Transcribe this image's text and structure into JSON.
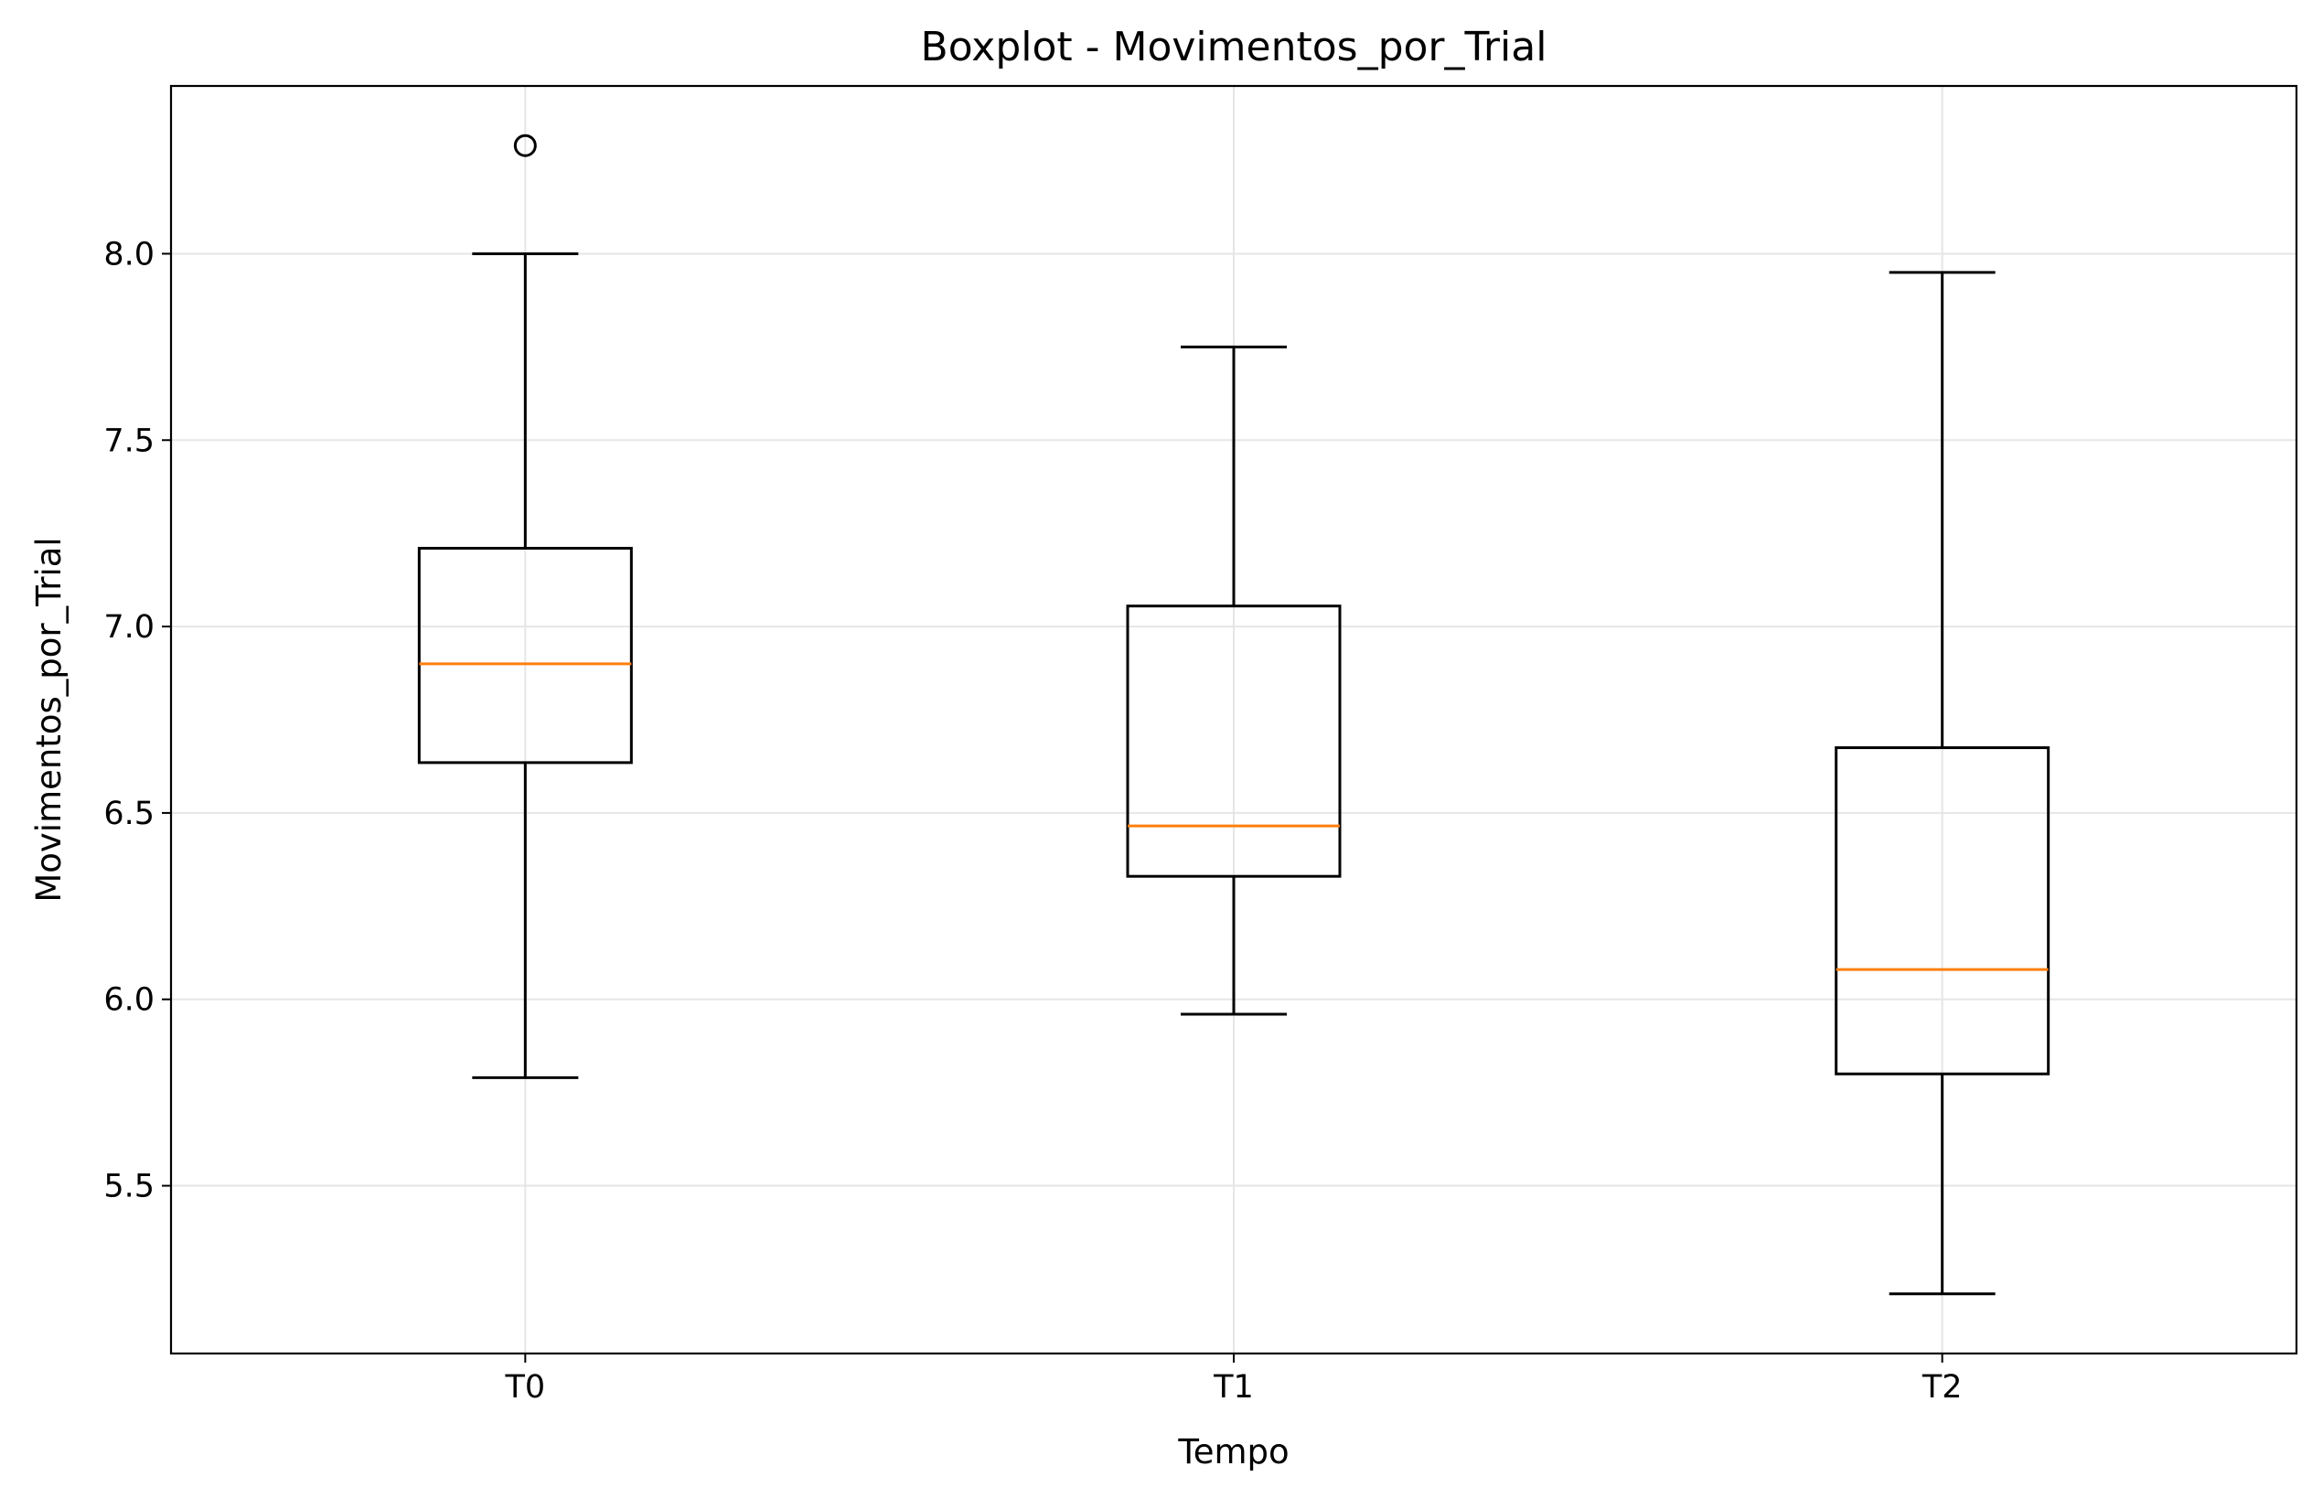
{
  "chart_data": {
    "type": "boxplot",
    "title": "Boxplot - Movimentos_por_Trial",
    "xlabel": "Tempo",
    "ylabel": "Movimentos_por_Trial",
    "categories": [
      "T0",
      "T1",
      "T2"
    ],
    "ylim": [
      5.05,
      8.45
    ],
    "yticks": [
      5.5,
      6.0,
      6.5,
      7.0,
      7.5,
      8.0
    ],
    "ytick_labels": [
      "5.5",
      "6.0",
      "6.5",
      "7.0",
      "7.5",
      "8.0"
    ],
    "grid": true,
    "boxes": [
      {
        "category": "T0",
        "whisker_low": 5.79,
        "q1": 6.635,
        "median": 6.9,
        "q3": 7.21,
        "whisker_high": 8.0,
        "outliers": [
          8.29
        ]
      },
      {
        "category": "T1",
        "whisker_low": 5.96,
        "q1": 6.33,
        "median": 6.465,
        "q3": 7.055,
        "whisker_high": 7.75,
        "outliers": []
      },
      {
        "category": "T2",
        "whisker_low": 5.21,
        "q1": 5.8,
        "median": 6.08,
        "q3": 6.675,
        "whisker_high": 7.95,
        "outliers": []
      }
    ],
    "colors": {
      "box": "#000000",
      "median": "#ff7f0e",
      "grid": "#e6e6e6"
    }
  }
}
